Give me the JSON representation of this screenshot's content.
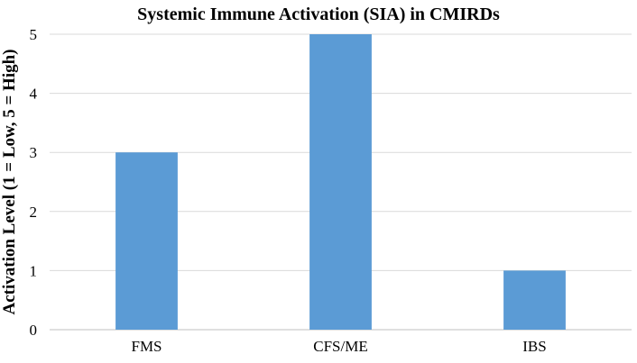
{
  "chart_data": {
    "type": "bar",
    "title": "Systemic Immune Activation (SIA) in CMIRDs",
    "xlabel": "",
    "ylabel": "Activation Level (1 = Low, 5 = High)",
    "categories": [
      "FMS",
      "CFS/ME",
      "IBS"
    ],
    "values": [
      3,
      5,
      1
    ],
    "ylim": [
      0,
      5
    ],
    "yticks": [
      0,
      1,
      2,
      3,
      4,
      5
    ],
    "grid": true,
    "bar_color": "#5b9bd5",
    "legend": "none"
  }
}
